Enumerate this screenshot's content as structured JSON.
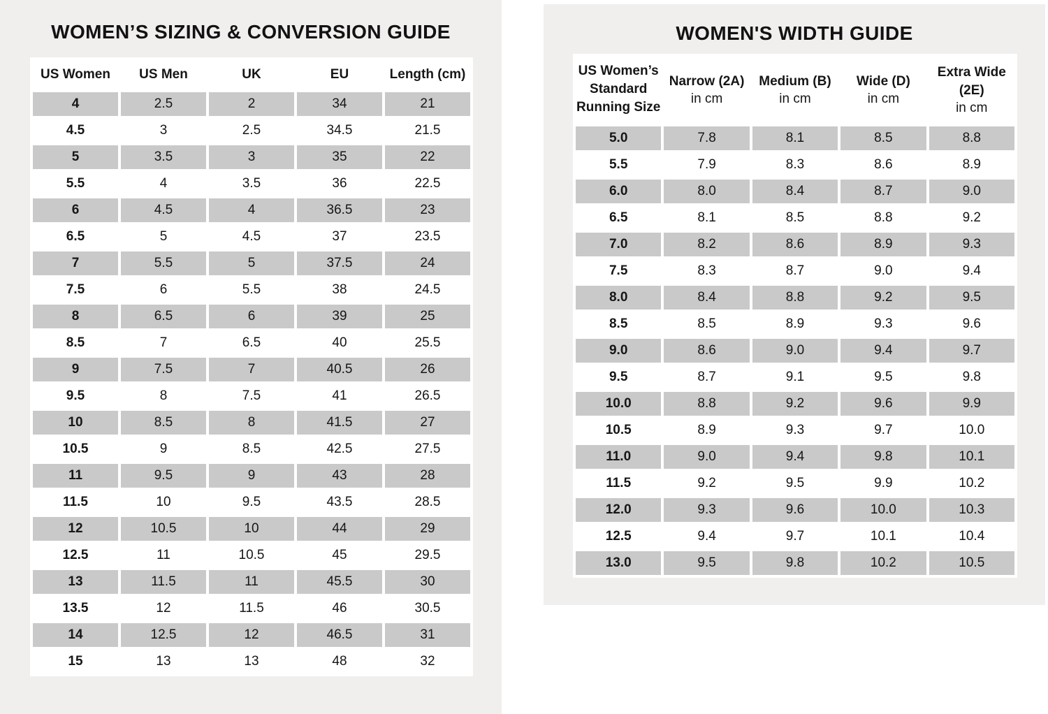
{
  "colors": {
    "page_bg": "#ffffff",
    "card_bg": "#f1eeee",
    "table_bg": "#ffffff",
    "shaded_cell": "#cac9c9",
    "text": "#161616"
  },
  "left_card": {
    "title": "WOMEN’S SIZING & CONVERSION GUIDE",
    "table": {
      "headers": [
        "US Women",
        "US Men",
        "UK",
        "EU",
        "Length (cm)"
      ],
      "rows": [
        [
          "4",
          "2.5",
          "2",
          "34",
          "21"
        ],
        [
          "4.5",
          "3",
          "2.5",
          "34.5",
          "21.5"
        ],
        [
          "5",
          "3.5",
          "3",
          "35",
          "22"
        ],
        [
          "5.5",
          "4",
          "3.5",
          "36",
          "22.5"
        ],
        [
          "6",
          "4.5",
          "4",
          "36.5",
          "23"
        ],
        [
          "6.5",
          "5",
          "4.5",
          "37",
          "23.5"
        ],
        [
          "7",
          "5.5",
          "5",
          "37.5",
          "24"
        ],
        [
          "7.5",
          "6",
          "5.5",
          "38",
          "24.5"
        ],
        [
          "8",
          "6.5",
          "6",
          "39",
          "25"
        ],
        [
          "8.5",
          "7",
          "6.5",
          "40",
          "25.5"
        ],
        [
          "9",
          "7.5",
          "7",
          "40.5",
          "26"
        ],
        [
          "9.5",
          "8",
          "7.5",
          "41",
          "26.5"
        ],
        [
          "10",
          "8.5",
          "8",
          "41.5",
          "27"
        ],
        [
          "10.5",
          "9",
          "8.5",
          "42.5",
          "27.5"
        ],
        [
          "11",
          "9.5",
          "9",
          "43",
          "28"
        ],
        [
          "11.5",
          "10",
          "9.5",
          "43.5",
          "28.5"
        ],
        [
          "12",
          "10.5",
          "10",
          "44",
          "29"
        ],
        [
          "12.5",
          "11",
          "10.5",
          "45",
          "29.5"
        ],
        [
          "13",
          "11.5",
          "11",
          "45.5",
          "30"
        ],
        [
          "13.5",
          "12",
          "11.5",
          "46",
          "30.5"
        ],
        [
          "14",
          "12.5",
          "12",
          "46.5",
          "31"
        ],
        [
          "15",
          "13",
          "13",
          "48",
          "32"
        ]
      ]
    }
  },
  "right_card": {
    "title": "WOMEN'S WIDTH GUIDE",
    "table": {
      "headers": [
        {
          "lines": [
            "US Women’s",
            "Standard",
            "Running Size"
          ]
        },
        {
          "label": "Narrow (2A)",
          "sub": "in cm"
        },
        {
          "label": "Medium (B)",
          "sub": "in cm"
        },
        {
          "label": "Wide (D)",
          "sub": "in cm"
        },
        {
          "label": "Extra Wide (2E)",
          "sub": "in cm"
        }
      ],
      "rows": [
        [
          "5.0",
          "7.8",
          "8.1",
          "8.5",
          "8.8"
        ],
        [
          "5.5",
          "7.9",
          "8.3",
          "8.6",
          "8.9"
        ],
        [
          "6.0",
          "8.0",
          "8.4",
          "8.7",
          "9.0"
        ],
        [
          "6.5",
          "8.1",
          "8.5",
          "8.8",
          "9.2"
        ],
        [
          "7.0",
          "8.2",
          "8.6",
          "8.9",
          "9.3"
        ],
        [
          "7.5",
          "8.3",
          "8.7",
          "9.0",
          "9.4"
        ],
        [
          "8.0",
          "8.4",
          "8.8",
          "9.2",
          "9.5"
        ],
        [
          "8.5",
          "8.5",
          "8.9",
          "9.3",
          "9.6"
        ],
        [
          "9.0",
          "8.6",
          "9.0",
          "9.4",
          "9.7"
        ],
        [
          "9.5",
          "8.7",
          "9.1",
          "9.5",
          "9.8"
        ],
        [
          "10.0",
          "8.8",
          "9.2",
          "9.6",
          "9.9"
        ],
        [
          "10.5",
          "8.9",
          "9.3",
          "9.7",
          "10.0"
        ],
        [
          "11.0",
          "9.0",
          "9.4",
          "9.8",
          "10.1"
        ],
        [
          "11.5",
          "9.2",
          "9.5",
          "9.9",
          "10.2"
        ],
        [
          "12.0",
          "9.3",
          "9.6",
          "10.0",
          "10.3"
        ],
        [
          "12.5",
          "9.4",
          "9.7",
          "10.1",
          "10.4"
        ],
        [
          "13.0",
          "9.5",
          "9.8",
          "10.2",
          "10.5"
        ]
      ]
    }
  }
}
